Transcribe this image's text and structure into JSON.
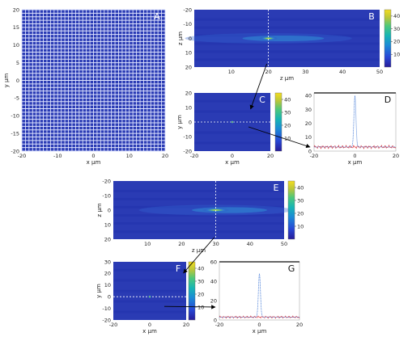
{
  "chart_data": [
    {
      "panel": "A",
      "type": "heatmap",
      "xlabel": "x μm",
      "ylabel": "y μm",
      "xlim": [
        -20,
        20
      ],
      "ylim": [
        -20,
        20
      ],
      "xticks": [
        -20,
        -10,
        0,
        10,
        20
      ],
      "yticks": [
        20,
        15,
        10,
        5,
        0,
        -5,
        -10,
        -15,
        -20
      ],
      "grid_period_um": 1.0
    },
    {
      "panel": "B",
      "type": "heatmap",
      "xlabel": "z μm",
      "ylabel": "z μm",
      "xlim": [
        0,
        50
      ],
      "ylim": [
        -20,
        20
      ],
      "xticks": [
        10,
        20,
        30,
        40,
        50
      ],
      "yticks": [
        -20,
        -10,
        0,
        10,
        20
      ],
      "colorbar_ticks": [
        10,
        20,
        30,
        40
      ],
      "colorbar_range": [
        0,
        45
      ],
      "marker_line_x": 20
    },
    {
      "panel": "C",
      "type": "heatmap",
      "xlabel": "x μm",
      "ylabel": "y μm",
      "xlim": [
        -20,
        20
      ],
      "ylim": [
        -20,
        20
      ],
      "xticks": [
        -20,
        0,
        20
      ],
      "yticks": [
        20,
        10,
        0,
        -10,
        -20
      ],
      "colorbar_ticks": [
        10,
        20,
        30,
        40
      ],
      "colorbar_range": [
        0,
        45
      ],
      "marker_line_y": 0
    },
    {
      "panel": "D",
      "type": "line",
      "xlabel": "x μm",
      "ylabel": "",
      "xlim": [
        -20,
        20
      ],
      "ylim": [
        0,
        42
      ],
      "xticks": [
        -20,
        0,
        20
      ],
      "yticks": [
        0,
        10,
        20,
        30,
        40
      ],
      "peak": {
        "x": 0,
        "y": 40,
        "width": 0.7
      },
      "background_level": 3
    },
    {
      "panel": "E",
      "type": "heatmap",
      "xlabel": "z μm",
      "ylabel": "z μm",
      "xlim": [
        0,
        50
      ],
      "ylim": [
        -20,
        20
      ],
      "xticks": [
        10,
        20,
        30,
        40,
        50
      ],
      "yticks": [
        -20,
        -10,
        0,
        10,
        20
      ],
      "colorbar_ticks": [
        10,
        20,
        30,
        40
      ],
      "colorbar_range": [
        0,
        45
      ],
      "marker_line_x": 30
    },
    {
      "panel": "F",
      "type": "heatmap",
      "xlabel": "x μm",
      "ylabel": "y μm",
      "xlim": [
        -20,
        20
      ],
      "ylim": [
        -20,
        30
      ],
      "xticks": [
        -20,
        0,
        20
      ],
      "yticks": [
        30,
        20,
        10,
        0,
        -10,
        -20
      ],
      "colorbar_ticks": [
        10,
        20,
        30,
        40
      ],
      "colorbar_range": [
        0,
        45
      ],
      "marker_line_y": 0
    },
    {
      "panel": "G",
      "type": "line",
      "xlabel": "x μm",
      "ylabel": "",
      "xlim": [
        -20,
        20
      ],
      "ylim": [
        0,
        60
      ],
      "xticks": [
        -20,
        0,
        20
      ],
      "yticks": [
        0,
        20,
        40,
        60
      ],
      "peak": {
        "x": 0,
        "y": 48,
        "width": 0.7
      },
      "background_level": 3
    }
  ],
  "colors": {
    "map_background": "#2a3bb4",
    "map_dark": "#1e2da8",
    "grid_line": "#dfe4ff",
    "colormap": [
      "#271c99",
      "#2748d6",
      "#1b8ad6",
      "#16b5b4",
      "#4fc879",
      "#b8c63b",
      "#f4dd1f"
    ],
    "profile_blue": "#4b7fd8",
    "profile_red": "#d8242c",
    "dashed": "#ffffff",
    "arrow": "#000000"
  }
}
